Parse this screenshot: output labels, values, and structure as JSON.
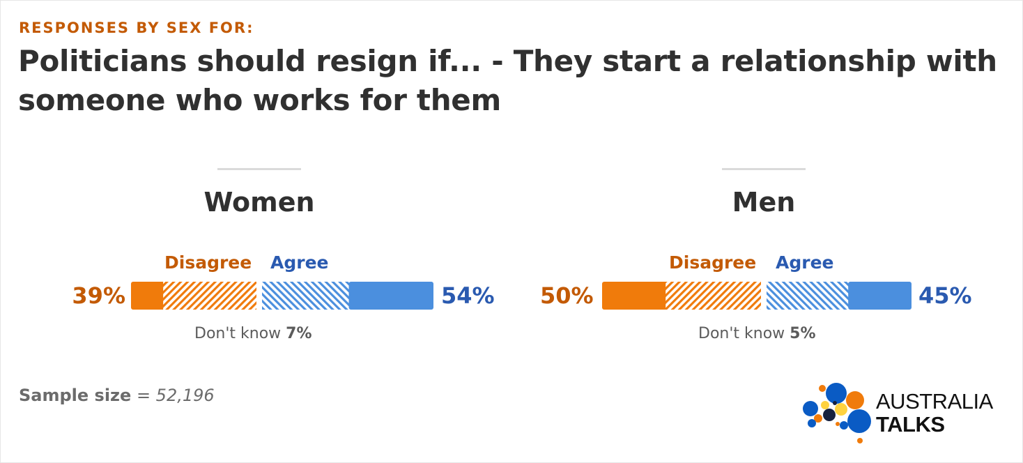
{
  "header": {
    "eyebrow": "RESPONSES BY SEX FOR:",
    "title": "Politicians should resign if... - They start a relationship with someone who works for them"
  },
  "legend": {
    "disagree": "Disagree",
    "agree": "Agree"
  },
  "colors": {
    "disagree_solid": "#f07b0b",
    "disagree_text": "#c35a04",
    "agree_solid": "#4b8fde",
    "agree_text": "#2a5ab0"
  },
  "chart_data": [
    {
      "type": "bar",
      "group": "Women",
      "disagree_pct_label": "39%",
      "agree_pct_label": "54%",
      "dont_know_label": "Don't know",
      "dont_know_value": "7%",
      "values": {
        "disagree_total": 39,
        "disagree_strong": 10,
        "disagree_somewhat": 29,
        "agree_somewhat": 28,
        "agree_strong": 26,
        "dont_know": 7
      }
    },
    {
      "type": "bar",
      "group": "Men",
      "disagree_pct_label": "50%",
      "agree_pct_label": "45%",
      "dont_know_label": "Don't know",
      "dont_know_value": "5%",
      "values": {
        "disagree_total": 50,
        "disagree_strong": 20,
        "disagree_somewhat": 30,
        "agree_somewhat": 26,
        "agree_strong": 19,
        "dont_know": 5
      }
    }
  ],
  "footer": {
    "sample_label": "Sample size",
    "sample_value": "= 52,196"
  },
  "logo": {
    "line1": "AUSTRALIA",
    "line2": "TALKS"
  }
}
